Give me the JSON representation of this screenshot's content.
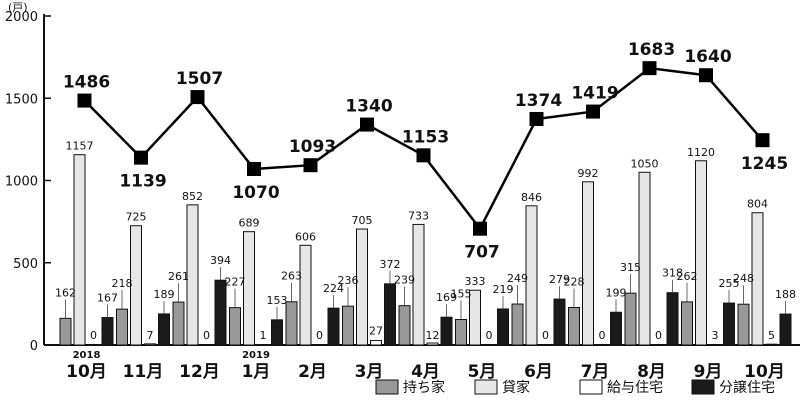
{
  "chart_data": {
    "type": "bar",
    "unit_label": "(戸)",
    "categories": [
      "10月",
      "11月",
      "12月",
      "1月",
      "2月",
      "3月",
      "4月",
      "5月",
      "6月",
      "7月",
      "8月",
      "9月",
      "10月"
    ],
    "year_markers": [
      {
        "index": 0,
        "label": "2018"
      },
      {
        "index": 3,
        "label": "2019"
      }
    ],
    "y_ticks": [
      0,
      500,
      1000,
      1500,
      2000
    ],
    "ylim": [
      0,
      2000
    ],
    "series": [
      {
        "name": "持ち家",
        "mark": "bar",
        "color": "#999999",
        "values": [
          162,
          218,
          261,
          227,
          263,
          236,
          239,
          155,
          249,
          228,
          315,
          262,
          248
        ]
      },
      {
        "name": "貸家",
        "mark": "bar",
        "color": "#e6e6e6",
        "values": [
          1157,
          725,
          852,
          689,
          606,
          705,
          733,
          333,
          846,
          992,
          1050,
          1120,
          804
        ]
      },
      {
        "name": "給与住宅",
        "mark": "bar",
        "color": "#ffffff",
        "values": [
          0,
          7,
          0,
          1,
          0,
          27,
          12,
          0,
          0,
          0,
          0,
          3,
          5
        ]
      },
      {
        "name": "分譲住宅",
        "mark": "bar",
        "color": "#1a1a1a",
        "values": [
          167,
          189,
          394,
          153,
          224,
          372,
          169,
          219,
          279,
          199,
          318,
          255,
          188
        ]
      },
      {
        "name": "",
        "mark": "line",
        "color": "#000000",
        "values": [
          1486,
          1139,
          1507,
          1070,
          1093,
          1340,
          1153,
          707,
          1374,
          1419,
          1683,
          1640,
          1245
        ]
      }
    ],
    "legend_position": "bottom-right",
    "grid": false
  }
}
